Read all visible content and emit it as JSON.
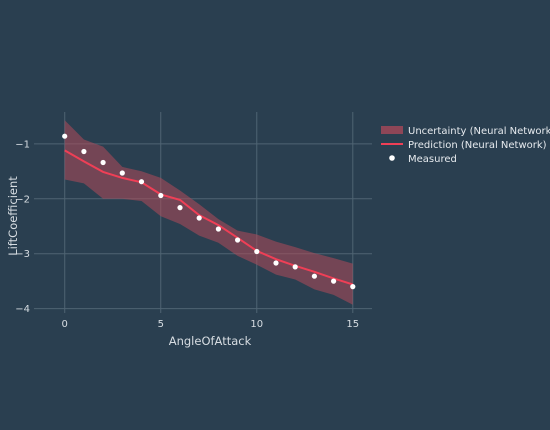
{
  "chart_data": {
    "type": "line",
    "title": "",
    "xlabel": "AngleOfAttack",
    "ylabel": "LiftCoefficient",
    "xlim": [
      -1.6,
      16.0
    ],
    "ylim": [
      -4.08,
      -0.42
    ],
    "x_ticks": [
      0,
      5,
      10,
      15
    ],
    "y_ticks": [
      -1,
      -2,
      -3,
      -4
    ],
    "x_tick_labels": [
      "0",
      "5",
      "10",
      "15"
    ],
    "y_tick_labels": [
      "−1",
      "−2",
      "−3",
      "−4"
    ],
    "grid": true,
    "legend_position": "top-right",
    "x": [
      0,
      1,
      2,
      3,
      4,
      5,
      6,
      7,
      8,
      9,
      10,
      11,
      12,
      13,
      14,
      15
    ],
    "series": [
      {
        "name": "Uncertainty (Neural Network)",
        "kind": "band",
        "color": "#b04a5a",
        "upper": [
          -0.57,
          -0.92,
          -1.05,
          -1.42,
          -1.5,
          -1.62,
          -1.85,
          -2.1,
          -2.37,
          -2.58,
          -2.65,
          -2.78,
          -2.88,
          -2.99,
          -3.08,
          -3.18
        ],
        "lower": [
          -1.65,
          -1.72,
          -2.0,
          -2.0,
          -2.04,
          -2.32,
          -2.46,
          -2.67,
          -2.8,
          -3.04,
          -3.2,
          -3.38,
          -3.47,
          -3.65,
          -3.75,
          -3.93
        ]
      },
      {
        "name": "Prediction (Neural Network)",
        "kind": "line",
        "color": "#ef3f56",
        "values": [
          -1.12,
          -1.32,
          -1.51,
          -1.62,
          -1.7,
          -1.92,
          -2.02,
          -2.3,
          -2.48,
          -2.71,
          -2.95,
          -3.1,
          -3.22,
          -3.33,
          -3.45,
          -3.56
        ]
      },
      {
        "name": "Measured",
        "kind": "scatter",
        "color": "#ffffff",
        "values": [
          -0.86,
          -1.14,
          -1.34,
          -1.53,
          -1.69,
          -1.94,
          -2.16,
          -2.35,
          -2.55,
          -2.75,
          -2.96,
          -3.17,
          -3.24,
          -3.41,
          -3.5,
          -3.6
        ]
      }
    ]
  },
  "colors": {
    "background": "#2a3f50",
    "grid": "#4f6473",
    "text": "#d7dde2"
  }
}
